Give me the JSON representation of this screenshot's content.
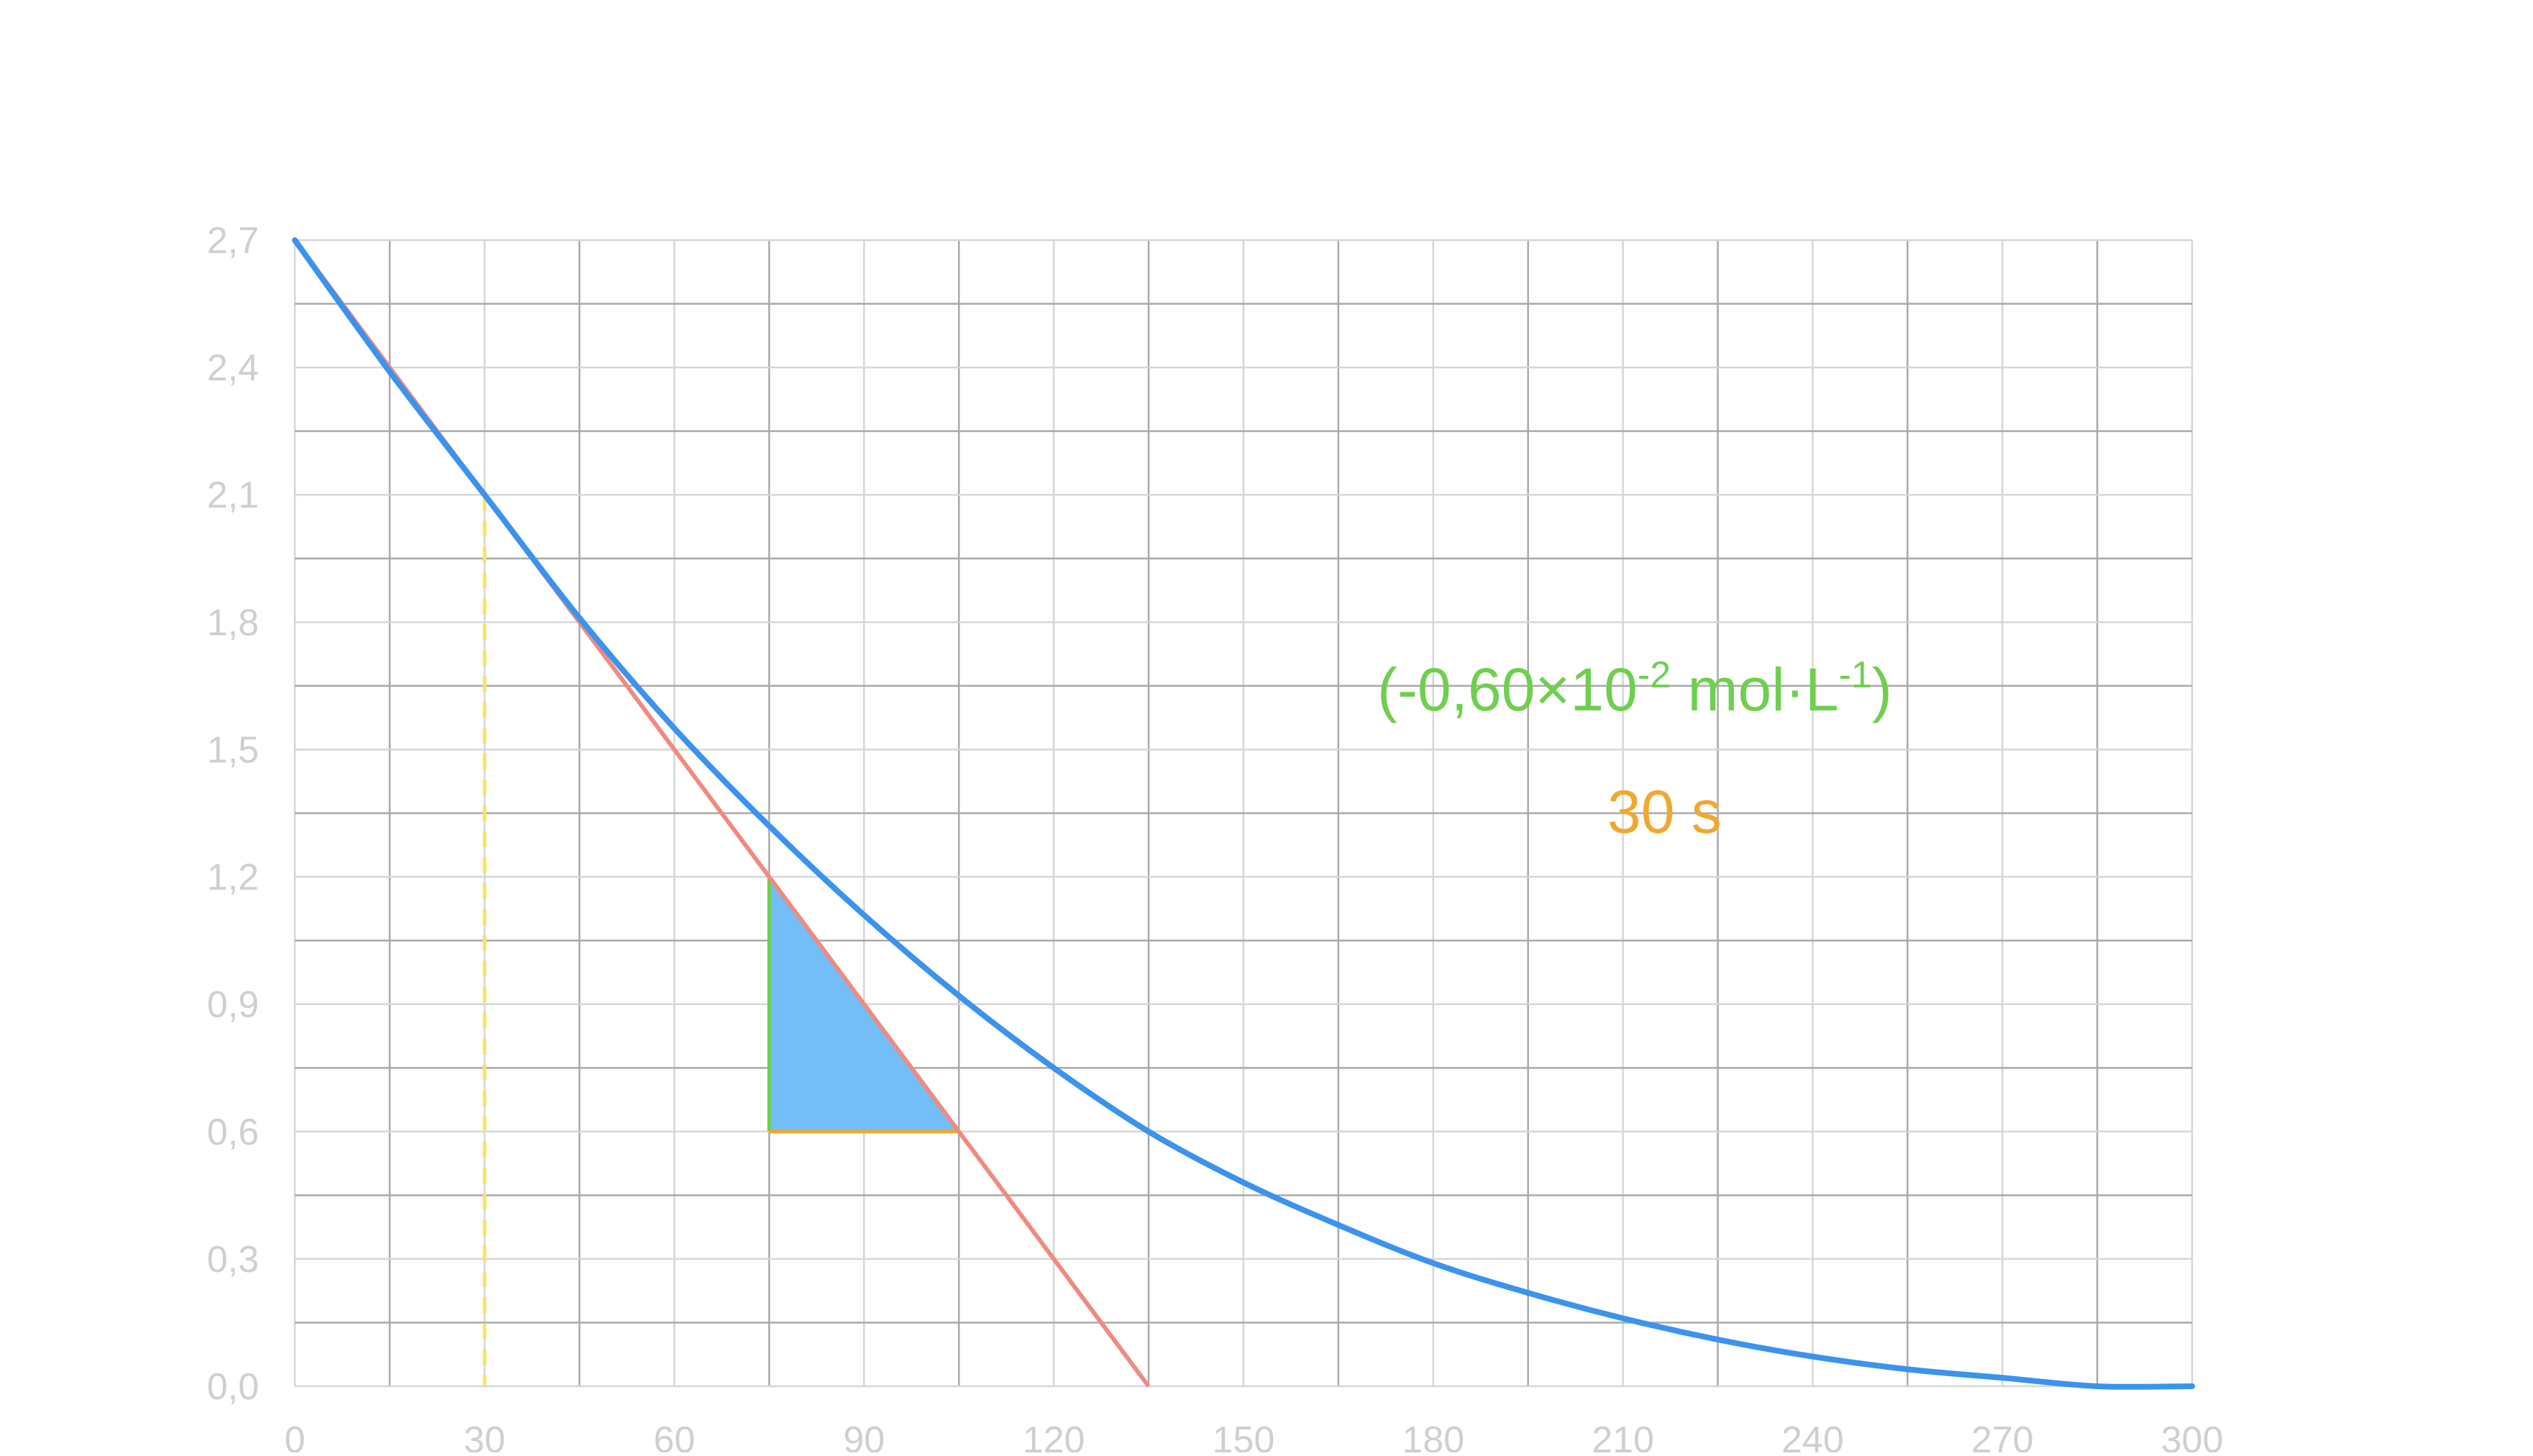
{
  "chart_data": {
    "type": "line",
    "title": "",
    "xlabel": "",
    "ylabel": "",
    "xlim": [
      0,
      300
    ],
    "ylim": [
      0,
      2.7
    ],
    "x_ticks": [
      "0",
      "30",
      "60",
      "90",
      "120",
      "150",
      "180",
      "210",
      "240",
      "270",
      "300"
    ],
    "y_ticks": [
      "0,0",
      "0,3",
      "0,6",
      "0,9",
      "1,2",
      "1,5",
      "1,8",
      "2,1",
      "2,4",
      "2,7"
    ],
    "grid": true,
    "series": [
      {
        "color": "#3b93ee",
        "x": [
          0,
          15,
          30,
          45,
          60,
          75,
          90,
          105,
          120,
          135,
          150,
          165,
          180,
          195,
          210,
          225,
          240,
          255,
          270,
          285,
          300
        ],
        "y": [
          2.7,
          2.39,
          2.1,
          1.81,
          1.55,
          1.32,
          1.11,
          0.92,
          0.75,
          0.6,
          0.48,
          0.38,
          0.29,
          0.22,
          0.16,
          0.11,
          0.07,
          0.04,
          0.02,
          0.0,
          0.0
        ]
      }
    ],
    "tangent_line": {
      "color": "#f08a80",
      "x": [
        0,
        135
      ],
      "y": [
        2.7,
        0.0
      ]
    },
    "vertical_marker": {
      "color": "#f5e36a",
      "x": 30,
      "y": [
        0,
        2.1
      ]
    },
    "slope_triangle": {
      "fill": "#74bef7",
      "vertex_top": [
        75,
        1.2
      ],
      "vertex_right": [
        105,
        0.6
      ],
      "vertex_corner": [
        75,
        0.6
      ],
      "vertical_color": "#6fcf4f",
      "horizontal_color": "#f0a830"
    },
    "annotations": {
      "delta_concentration": {
        "prefix": "(-0,60×10",
        "exp1": "-2",
        "middle": " mol·L",
        "exp2": "-1",
        "suffix": ")",
        "color": "#6fcf4f"
      },
      "delta_time": {
        "text": "30 s",
        "color": "#f0a830"
      }
    }
  }
}
